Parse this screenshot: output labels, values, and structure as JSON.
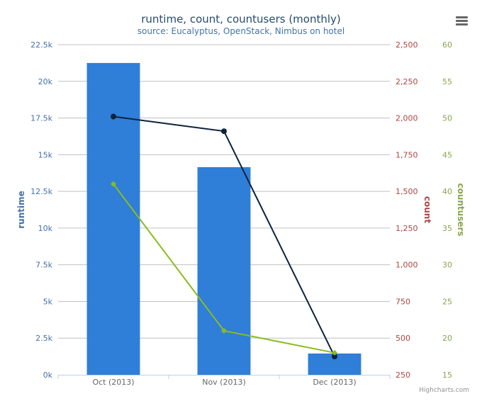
{
  "chart_data": {
    "type": "bar",
    "title": "runtime, count, countusers (monthly)",
    "subtitle": "source: Eucalyptus, OpenStack, Nimbus on hotel",
    "categories": [
      "Oct (2013)",
      "Nov (2013)",
      "Dec (2013)"
    ],
    "series": [
      {
        "name": "runtime",
        "type": "bar",
        "axis": "runtime",
        "color": "#2f7ed8",
        "values": [
          21250,
          14150,
          1450
        ]
      },
      {
        "name": "count",
        "type": "line",
        "axis": "count",
        "color": "#0d233a",
        "values": [
          2010,
          1910,
          375
        ]
      },
      {
        "name": "countusers",
        "type": "line",
        "axis": "countusers",
        "color": "#8bbc21",
        "values": [
          41,
          21,
          18
        ]
      }
    ],
    "axes": {
      "runtime": {
        "title": "runtime",
        "color": "#4572a7",
        "ylim": [
          0,
          22500
        ],
        "ticks": [
          0,
          2500,
          5000,
          7500,
          10000,
          12500,
          15000,
          17500,
          20000,
          22500
        ],
        "tick_labels": [
          "0k",
          "2.5k",
          "5k",
          "7.5k",
          "10k",
          "12.5k",
          "15k",
          "17.5k",
          "20k",
          "22.5k"
        ]
      },
      "count": {
        "title": "count",
        "color": "#aa4643",
        "ylim": [
          250,
          2500
        ],
        "ticks": [
          250,
          500,
          750,
          1000,
          1250,
          1500,
          1750,
          2000,
          2250,
          2500
        ],
        "tick_labels": [
          "250",
          "500",
          "750",
          "1,000",
          "1,250",
          "1,500",
          "1,750",
          "2,000",
          "2,250",
          "2,500"
        ]
      },
      "countusers": {
        "title": "countusers",
        "color": "#89a54e",
        "ylim": [
          15,
          60
        ],
        "ticks": [
          15,
          20,
          25,
          30,
          35,
          40,
          45,
          50,
          55,
          60
        ],
        "tick_labels": [
          "15",
          "20",
          "25",
          "30",
          "35",
          "40",
          "45",
          "50",
          "55",
          "60"
        ]
      }
    },
    "grid": true,
    "legend": "none"
  },
  "ui": {
    "menu_icon": "hamburger-menu-icon",
    "credits": "Highcharts.com"
  }
}
